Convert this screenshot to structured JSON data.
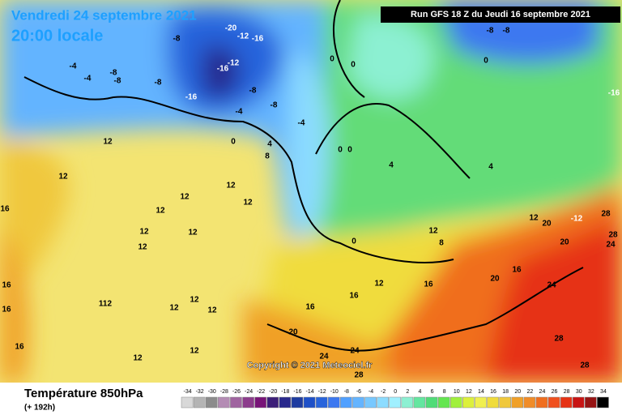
{
  "header": {
    "date": "Vendredi 24 septembre 2021",
    "time": "20:00 locale",
    "run": "Run GFS 18 Z du Jeudi 16 septembre 2021"
  },
  "copyright": "Copyright © 2021 Meteociel.fr",
  "footer": {
    "title": "Température 850hPa",
    "range": "(+ 192h)"
  },
  "legend": {
    "ticks": [
      -34,
      -32,
      -30,
      -28,
      -26,
      -24,
      -22,
      -20,
      -18,
      -16,
      -14,
      -12,
      -10,
      -8,
      -6,
      -4,
      -2,
      0,
      2,
      4,
      6,
      8,
      10,
      12,
      14,
      16,
      18,
      20,
      22,
      24,
      26,
      28,
      30,
      32,
      34
    ],
    "colors": [
      "#d8d8d8",
      "#b4b4b4",
      "#8c8c8c",
      "#b48cb4",
      "#a064a0",
      "#8c3c8c",
      "#781478",
      "#3c1e78",
      "#28288c",
      "#1e3ca0",
      "#1e50c8",
      "#2864dc",
      "#3c78f0",
      "#50a0ff",
      "#64b4ff",
      "#78c8ff",
      "#8cdcff",
      "#a0f0ff",
      "#8cf0d2",
      "#64e6a0",
      "#50dc78",
      "#64e650",
      "#a0f03c",
      "#dcf03c",
      "#f0f050",
      "#f0dc3c",
      "#f0c83c",
      "#f0a028",
      "#f08c28",
      "#f06e1e",
      "#f0501e",
      "#e63214",
      "#c81414",
      "#961414",
      "#000000"
    ]
  },
  "map": {
    "labels": [
      -8,
      -20,
      -12,
      -16,
      -12,
      -16,
      -16,
      -8,
      -8,
      -4,
      -4,
      -4,
      -8,
      -8,
      -8,
      -4,
      0,
      4,
      8,
      0,
      0,
      0,
      0,
      0,
      4,
      4,
      0,
      -8,
      -8,
      -16,
      12,
      12,
      12,
      12,
      12,
      12,
      12,
      12,
      12,
      16,
      16,
      16,
      112,
      12,
      12,
      12,
      12,
      12,
      16,
      20,
      24,
      24,
      28,
      20,
      24,
      28,
      28,
      28,
      20,
      20,
      16,
      12,
      16,
      12,
      12,
      8,
      16,
      16,
      -12,
      24,
      28
    ]
  }
}
